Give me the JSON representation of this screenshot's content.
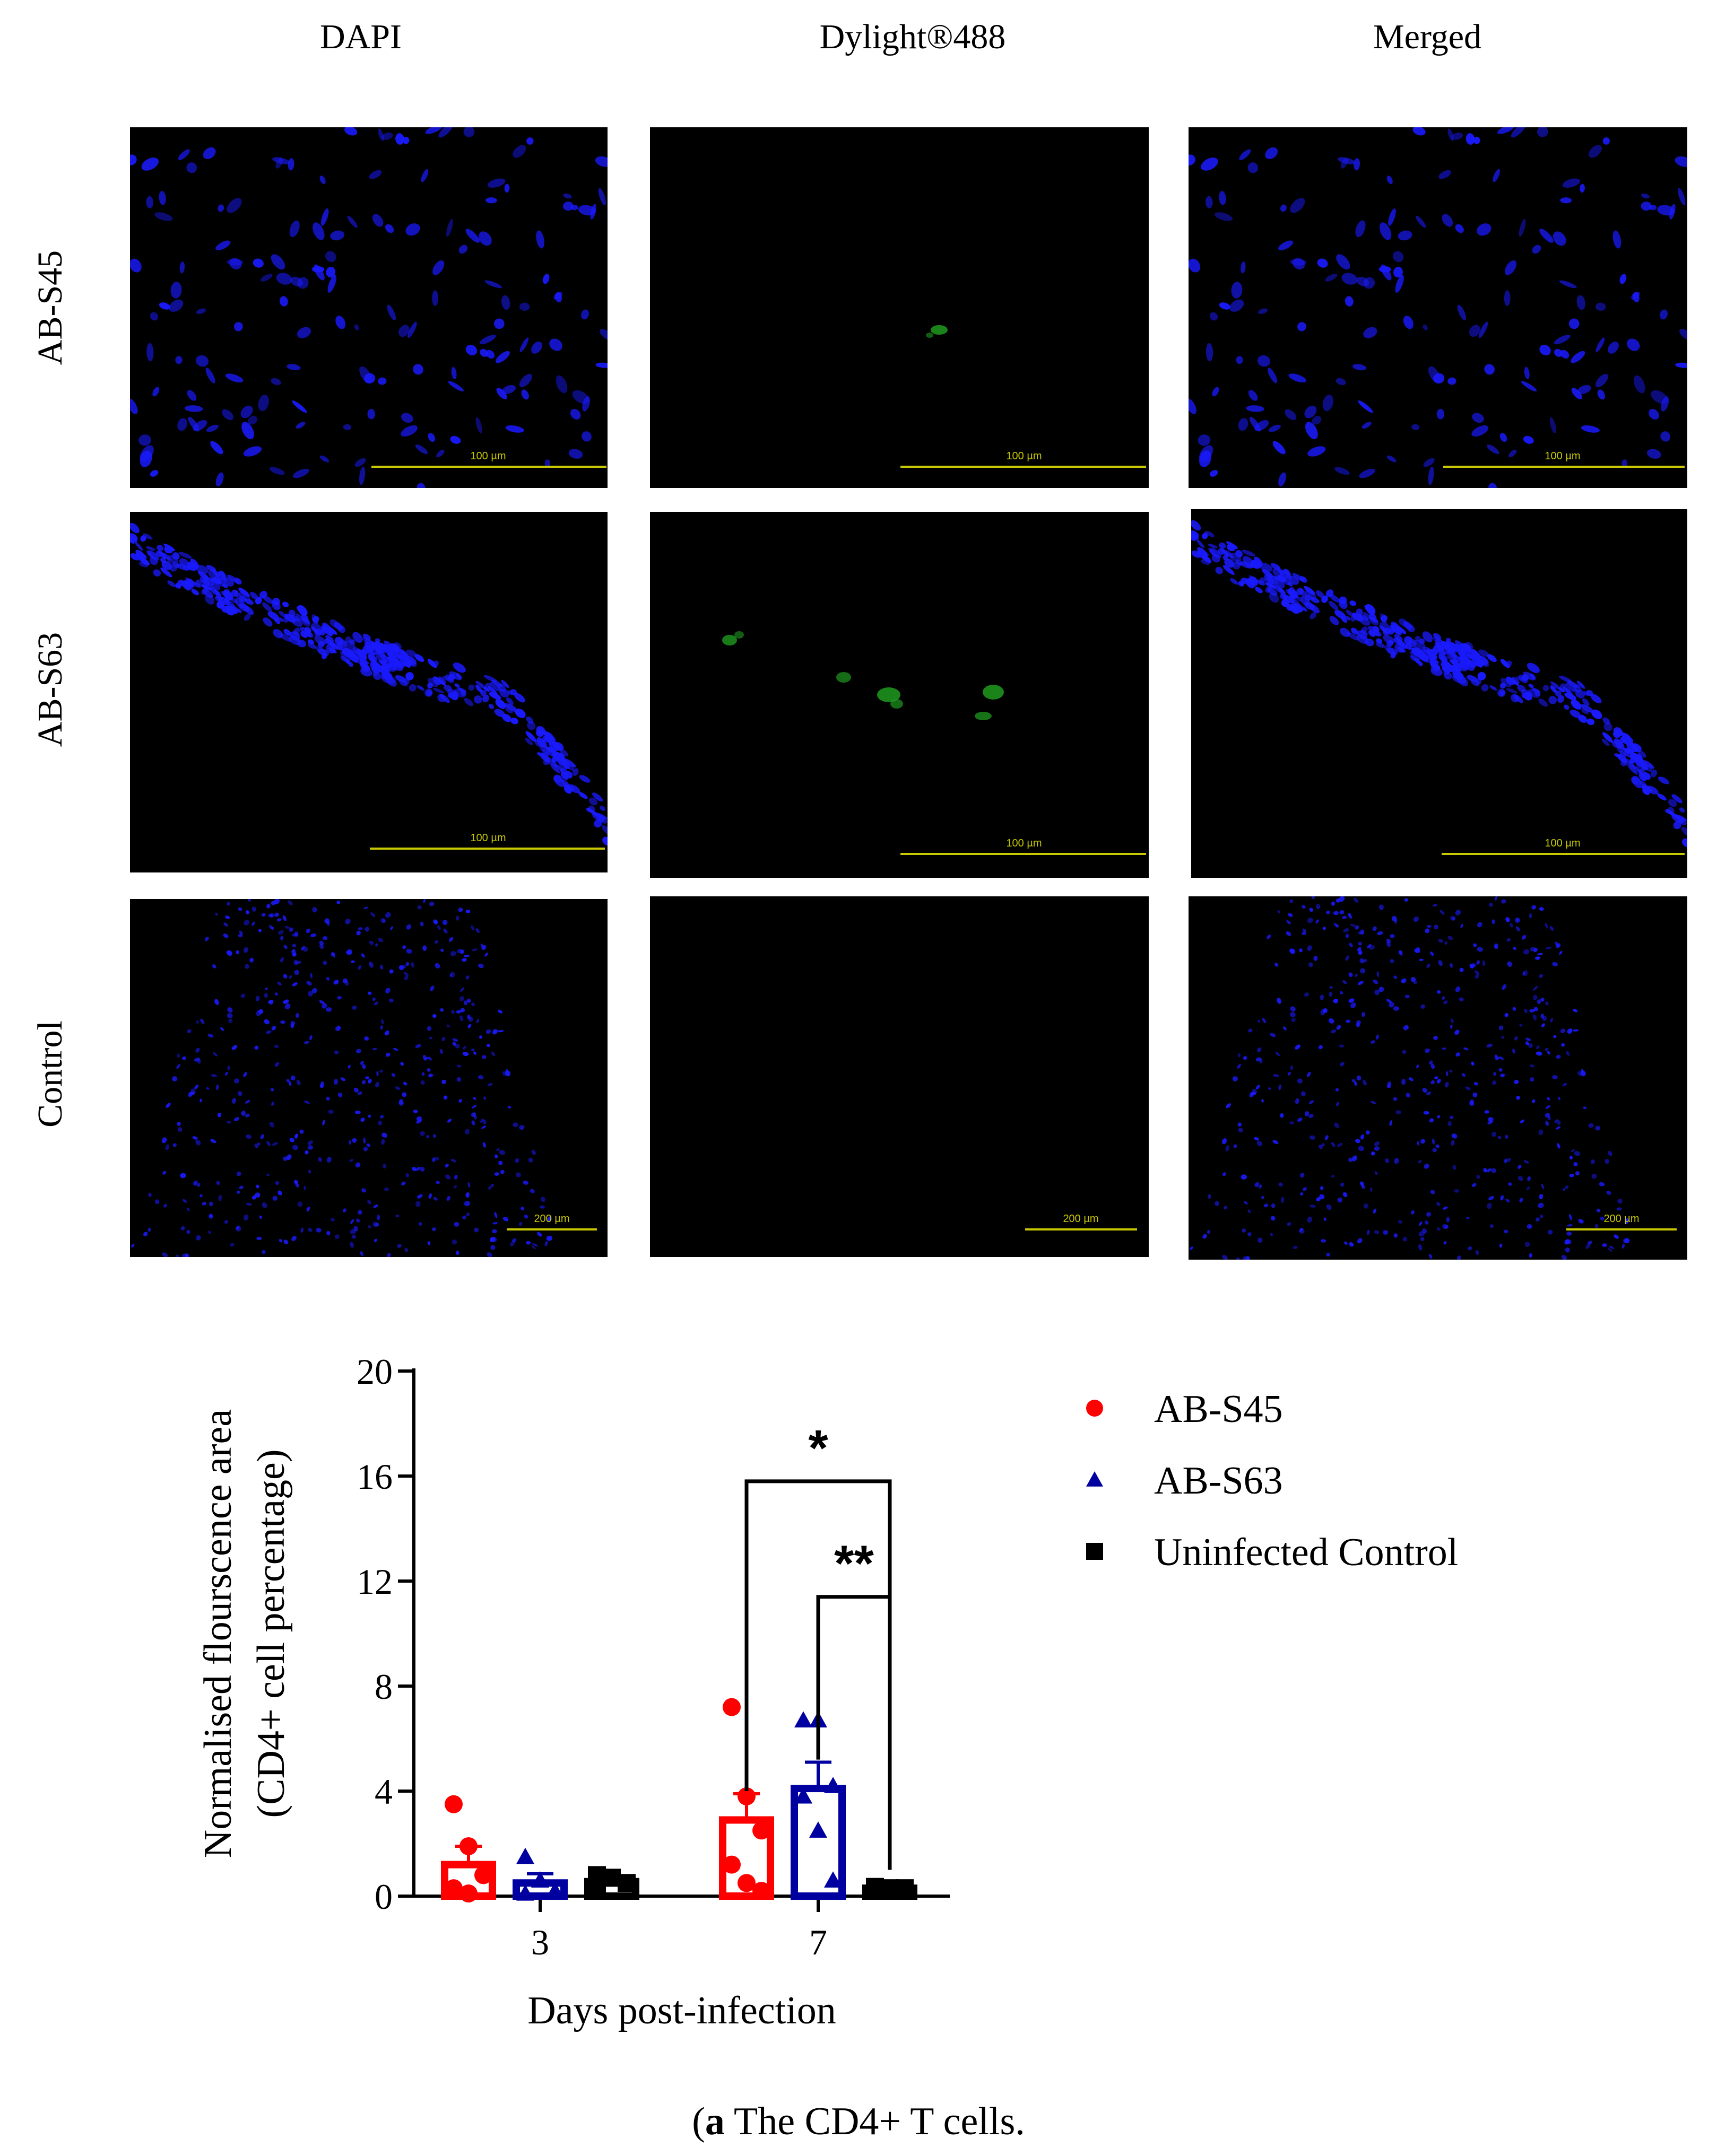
{
  "figure": {
    "column_headers": [
      "DAPI",
      "Dylight®488",
      "Merged"
    ],
    "row_labels": [
      "AB-S45",
      "AB-S63",
      "Control"
    ],
    "scale_bars": [
      [
        "100 µm",
        "100 µm",
        "100 µm"
      ],
      [
        "100 µm",
        "100 µm",
        "100 µm"
      ],
      [
        "200 µm",
        "200 µm",
        "200 µm"
      ]
    ],
    "caption_letter": "a",
    "caption_text": " The CD4+ T cells."
  },
  "colors": {
    "dapi": "#1a1aff",
    "dylight": "#1f9a1f",
    "scale_bar": "#c8c800",
    "ab_s45": "#ff0000",
    "ab_s63": "#0000a0",
    "control": "#000000"
  },
  "chart_data": {
    "type": "bar",
    "categories": [
      "3",
      "7"
    ],
    "xlabel": "Days post-infection",
    "ylabel": [
      "Normalised flourscence area",
      "(CD4+ cell percentage)"
    ],
    "ylim": [
      0,
      20
    ],
    "yticks": [
      0,
      4,
      8,
      12,
      16,
      20
    ],
    "legend_position": "right",
    "series": [
      {
        "name": "AB-S45",
        "marker": "circle",
        "values": [
          1.2,
          2.9
        ],
        "errors": [
          0.7,
          1.0
        ],
        "points": [
          [
            3.5,
            1.9,
            0.8,
            0.3,
            0.1
          ],
          [
            7.2,
            3.8,
            2.5,
            1.2,
            0.5,
            0.2
          ]
        ]
      },
      {
        "name": "AB-S63",
        "marker": "triangle",
        "values": [
          0.5,
          4.1
        ],
        "errors": [
          0.35,
          1.0
        ],
        "points": [
          [
            1.5,
            0.6,
            0.2,
            0.1
          ],
          [
            6.7,
            6.7,
            4.2,
            3.8,
            2.5,
            0.6
          ]
        ]
      },
      {
        "name": "Uninfected Control",
        "marker": "square",
        "values": [
          0.55,
          0.3
        ],
        "errors": [
          0.2,
          0.05
        ],
        "points": [
          [
            0.8,
            0.7,
            0.5,
            0.3
          ],
          [
            0.35,
            0.3,
            0.3,
            0.25
          ]
        ]
      }
    ],
    "significance": [
      {
        "label": "*",
        "from": "AB-S45",
        "to": "Uninfected Control",
        "category": "7"
      },
      {
        "label": "**",
        "from": "AB-S63",
        "to": "Uninfected Control",
        "category": "7"
      }
    ]
  }
}
